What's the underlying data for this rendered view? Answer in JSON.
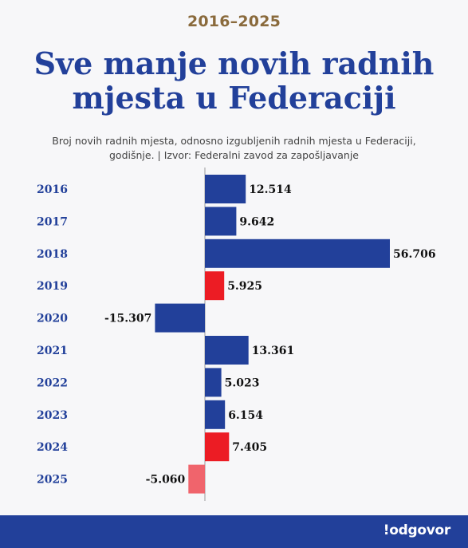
{
  "header": {
    "kicker": "2016–2025",
    "title_line1": "Sve manje novih radnih",
    "title_line2": "mjesta u Federaciji",
    "subtitle_line1": "Broj novih radnih mjesta, odnosno izgubljenih radnih mjesta u Federaciji,",
    "subtitle_line2": "godišnje. | Izvor: Federalni zavod za zapošljavanje"
  },
  "colors": {
    "blue": "#22409a",
    "red": "#ec1c24",
    "light_red": "#f0646c"
  },
  "chart_data": {
    "type": "bar",
    "orientation": "horizontal",
    "categories": [
      "2016",
      "2017",
      "2018",
      "2019",
      "2020",
      "2021",
      "2022",
      "2023",
      "2024",
      "2025"
    ],
    "values": [
      12514,
      9642,
      56706,
      5925,
      -15307,
      13361,
      5023,
      6154,
      7405,
      -5060
    ],
    "value_labels": [
      "12.514",
      "9.642",
      "56.706",
      "5.925",
      "-15.307",
      "13.361",
      "5.023",
      "6.154",
      "7.405",
      "-5.060"
    ],
    "bar_colors": [
      "#22409a",
      "#22409a",
      "#22409a",
      "#ec1c24",
      "#22409a",
      "#22409a",
      "#22409a",
      "#22409a",
      "#ec1c24",
      "#f0646c"
    ],
    "xlim": [
      -15307,
      56706
    ]
  },
  "footer": {
    "logo": "!odgovor"
  }
}
